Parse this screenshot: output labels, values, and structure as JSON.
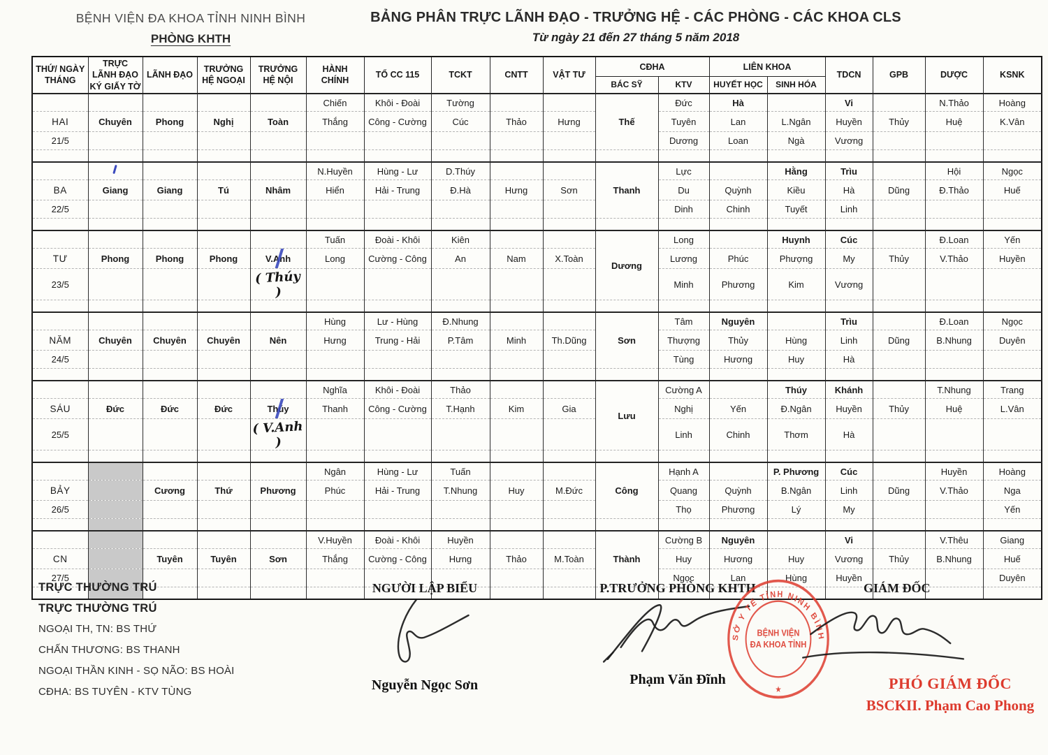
{
  "header": {
    "org_line1": "BỆNH VIỆN ĐA KHOA TỈNH NINH BÌNH",
    "org_line2": "PHÒNG KHTH",
    "title": "BẢNG PHÂN TRỰC LÃNH ĐẠO - TRƯỞNG HỆ - CÁC PHÒNG - CÁC KHOA CLS",
    "date_range": "Từ ngày 21 đến 27 tháng 5 năm 2018"
  },
  "table": {
    "header": {
      "day": "THỨ/ NGÀY THÁNG",
      "truc": "TRỰC LÃNH ĐẠO KÝ GIẤY TỜ",
      "lanh_dao": "LÃNH ĐẠO",
      "ngoai": "TRƯỞNG HỆ NGOẠI",
      "noi": "TRƯỞNG HỆ NỘI",
      "hanh_chinh": "HÀNH CHÍNH",
      "cc115": "TỔ CC 115",
      "tckt": "TCKT",
      "cntt": "CNTT",
      "vat_tu": "VẬT TƯ",
      "cdha": "CĐHA",
      "lien_khoa": "LIÊN KHOA",
      "bacsy": "BÁC SỸ",
      "ktv": "KTV",
      "huyet_hoc": "HUYẾT HỌC",
      "sinh_hoa": "SINH HÓA",
      "tdcn": "TDCN",
      "gpb": "GPB",
      "duoc": "DƯỢC",
      "ksnk": "KSNK"
    },
    "days": [
      {
        "day": "HAI",
        "date": "21/5",
        "truc": "Chuyên",
        "lanh_dao": "Phong",
        "ngoai": "Nghị",
        "noi": "Toàn",
        "hanh_chinh": [
          "Chiến",
          "Thắng",
          ""
        ],
        "cc115": [
          "Khôi - Đoài",
          "Công - Cường",
          ""
        ],
        "tckt": [
          "Tường",
          "Cúc",
          ""
        ],
        "cntt": [
          "",
          "Thảo",
          ""
        ],
        "vat_tu": [
          "",
          "Hưng",
          ""
        ],
        "bacsy": "Thế",
        "ktv": [
          "Đức",
          "Tuyên",
          "Dương"
        ],
        "huyet_hoc": [
          "Hà",
          "Lan",
          "Loan"
        ],
        "sinh_hoa": [
          "",
          "L.Ngân",
          "Ngà"
        ],
        "tdcn": [
          "Vi",
          "Huyền",
          "Vương"
        ],
        "gpb": [
          "",
          "Thủy",
          ""
        ],
        "duoc": [
          "N.Thảo",
          "Huệ",
          ""
        ],
        "ksnk": [
          "Hoàng",
          "K.Vân",
          ""
        ]
      },
      {
        "day": "BA",
        "date": "22/5",
        "truc": "Giang",
        "truc_tick": true,
        "lanh_dao": "Giang",
        "ngoai": "Tú",
        "noi": "Nhâm",
        "hanh_chinh": [
          "N.Huyền",
          "Hiển",
          ""
        ],
        "cc115": [
          "Hùng - Lư",
          "Hải - Trung",
          ""
        ],
        "tckt": [
          "D.Thúy",
          "Đ.Hà",
          ""
        ],
        "cntt": [
          "",
          "Hưng",
          ""
        ],
        "vat_tu": [
          "",
          "Sơn",
          ""
        ],
        "bacsy": "Thanh",
        "ktv": [
          "Lực",
          "Du",
          "Dinh"
        ],
        "huyet_hoc": [
          "",
          "Quỳnh",
          "Chinh"
        ],
        "sinh_hoa": [
          "Hằng",
          "Kiều",
          "Tuyết"
        ],
        "tdcn": [
          "Trìu",
          "Hà",
          "Linh"
        ],
        "gpb": [
          "",
          "Dũng",
          ""
        ],
        "duoc": [
          "Hội",
          "Đ.Thảo",
          ""
        ],
        "ksnk": [
          "Ngọc",
          "Huế",
          ""
        ]
      },
      {
        "day": "TƯ",
        "date": "23/5",
        "truc": "Phong",
        "lanh_dao": "Phong",
        "ngoai": "Phong",
        "noi": "V.Anh",
        "noi_slashed": true,
        "noi_note": "( Thúy )",
        "hanh_chinh": [
          "Tuấn",
          "Long",
          ""
        ],
        "cc115": [
          "Đoài - Khôi",
          "Cường - Công",
          ""
        ],
        "tckt": [
          "Kiên",
          "An",
          ""
        ],
        "cntt": [
          "",
          "Nam",
          ""
        ],
        "vat_tu": [
          "",
          "X.Toàn",
          ""
        ],
        "bacsy": "Dương",
        "ktv": [
          "Long",
          "Lương",
          "Minh"
        ],
        "huyet_hoc": [
          "",
          "Phúc",
          "Phương"
        ],
        "sinh_hoa": [
          "Huynh",
          "Phượng",
          "Kim"
        ],
        "tdcn": [
          "Cúc",
          "My",
          "Vương"
        ],
        "gpb": [
          "",
          "Thủy",
          ""
        ],
        "duoc": [
          "Đ.Loan",
          "V.Thảo",
          ""
        ],
        "ksnk": [
          "Yến",
          "Huyền",
          ""
        ]
      },
      {
        "day": "NĂM",
        "date": "24/5",
        "truc": "Chuyên",
        "lanh_dao": "Chuyên",
        "ngoai": "Chuyên",
        "noi": "Nên",
        "hanh_chinh": [
          "Hùng",
          "Hưng",
          ""
        ],
        "cc115": [
          "Lư - Hùng",
          "Trung - Hải",
          ""
        ],
        "tckt": [
          "Đ.Nhung",
          "P.Tâm",
          ""
        ],
        "cntt": [
          "",
          "Minh",
          ""
        ],
        "vat_tu": [
          "",
          "Th.Dũng",
          ""
        ],
        "bacsy": "Sơn",
        "ktv": [
          "Tâm",
          "Thượng",
          "Tùng"
        ],
        "huyet_hoc": [
          "Nguyên",
          "Thủy",
          "Hương"
        ],
        "sinh_hoa": [
          "",
          "Hùng",
          "Huy"
        ],
        "tdcn": [
          "Trìu",
          "Linh",
          "Hà"
        ],
        "gpb": [
          "",
          "Dũng",
          ""
        ],
        "duoc": [
          "Đ.Loan",
          "B.Nhung",
          ""
        ],
        "ksnk": [
          "Ngọc",
          "Duyên",
          ""
        ]
      },
      {
        "day": "SÁU",
        "date": "25/5",
        "truc": "Đức",
        "lanh_dao": "Đức",
        "ngoai": "Đức",
        "noi": "Thúy",
        "noi_slashed": true,
        "noi_note": "( V.Anh )",
        "hanh_chinh": [
          "Nghĩa",
          "Thanh",
          ""
        ],
        "cc115": [
          "Khôi - Đoài",
          "Công - Cường",
          ""
        ],
        "tckt": [
          "Thảo",
          "T.Hạnh",
          ""
        ],
        "cntt": [
          "",
          "Kim",
          ""
        ],
        "vat_tu": [
          "",
          "Gia",
          ""
        ],
        "bacsy": "Lưu",
        "ktv": [
          "Cường A",
          "Nghị",
          "Linh"
        ],
        "huyet_hoc": [
          "",
          "Yến",
          "Chinh"
        ],
        "sinh_hoa": [
          "Thúy",
          "Đ.Ngân",
          "Thơm"
        ],
        "tdcn": [
          "Khánh",
          "Huyền",
          "Hà"
        ],
        "gpb": [
          "",
          "Thủy",
          ""
        ],
        "duoc": [
          "T.Nhung",
          "Huệ",
          ""
        ],
        "ksnk": [
          "Trang",
          "L.Vân",
          ""
        ]
      },
      {
        "day": "BẢY",
        "date": "26/5",
        "truc": "",
        "truc_shaded": true,
        "lanh_dao": "Cương",
        "ngoai": "Thứ",
        "noi": "Phương",
        "hanh_chinh": [
          "Ngân",
          "Phúc",
          ""
        ],
        "cc115": [
          "Hùng - Lư",
          "Hải - Trung",
          ""
        ],
        "tckt": [
          "Tuấn",
          "T.Nhung",
          ""
        ],
        "cntt": [
          "",
          "Huy",
          ""
        ],
        "vat_tu": [
          "",
          "M.Đức",
          ""
        ],
        "bacsy": "Công",
        "ktv": [
          "Hạnh A",
          "Quang",
          "Thọ"
        ],
        "huyet_hoc": [
          "",
          "Quỳnh",
          "Phương"
        ],
        "sinh_hoa": [
          "P. Phương",
          "B.Ngân",
          "Lý"
        ],
        "tdcn": [
          "Cúc",
          "Linh",
          "My"
        ],
        "gpb": [
          "",
          "Dũng",
          ""
        ],
        "duoc": [
          "Huyền",
          "V.Thảo",
          ""
        ],
        "ksnk": [
          "Hoàng",
          "Nga",
          "Yến"
        ]
      },
      {
        "day": "CN",
        "date": "27/5",
        "truc": "",
        "truc_shaded": true,
        "lanh_dao": "Tuyên",
        "ngoai": "Tuyên",
        "noi": "Sơn",
        "hanh_chinh": [
          "V.Huyền",
          "Thắng",
          ""
        ],
        "cc115": [
          "Đoài - Khôi",
          "Cường - Công",
          ""
        ],
        "tckt": [
          "Huyền",
          "Hưng",
          ""
        ],
        "cntt": [
          "",
          "Thảo",
          ""
        ],
        "vat_tu": [
          "",
          "M.Toàn",
          ""
        ],
        "bacsy": "Thành",
        "ktv": [
          "Cường B",
          "Huy",
          "Ngọc"
        ],
        "huyet_hoc": [
          "Nguyên",
          "Hương",
          "Lan"
        ],
        "sinh_hoa": [
          "",
          "Huy",
          "Hùng"
        ],
        "tdcn": [
          "Vi",
          "Vương",
          "Huyền"
        ],
        "gpb": [
          "",
          "Thủy",
          ""
        ],
        "duoc": [
          "V.Thêu",
          "B.Nhung",
          ""
        ],
        "ksnk": [
          "Giang",
          "Huế",
          "Duyên"
        ]
      }
    ]
  },
  "footer": {
    "left_lines": [
      "TRỰC THƯỜNG TRÚ",
      "TRỰC THƯỜNG TRÚ",
      "NGOẠI TH, TN: BS THỨ",
      "CHẤN THƯƠNG: BS THANH",
      "NGOẠI THẦN KINH - SỌ NÃO: BS HOÀI",
      "CĐHA: BS TUYÊN - KTV TÙNG"
    ],
    "nguoi_lap_bieu": {
      "title": "NGƯỜI LẬP BIỂU",
      "name": "Nguyễn Ngọc Sơn"
    },
    "p_truong": {
      "title": "P.TRƯỞNG PHÒNG KHTH",
      "name": "Phạm Văn Đĩnh"
    },
    "giam_doc": {
      "title": "GIÁM ĐỐC",
      "pho_title": "PHÓ GIÁM ĐỐC",
      "signer": "BSCKII. Phạm Cao Phong"
    },
    "stamp": {
      "ring_text": "SỞ Y TẾ TỈNH NINH BÌNH",
      "center_line1": "BỆNH VIỆN",
      "center_line2": "ĐA KHOA TỈNH",
      "star": "★"
    }
  },
  "colors": {
    "stamp_red": "#dd3b2e",
    "pen_blue": "#3a49bd",
    "shade_gray": "#c9c9c9"
  }
}
